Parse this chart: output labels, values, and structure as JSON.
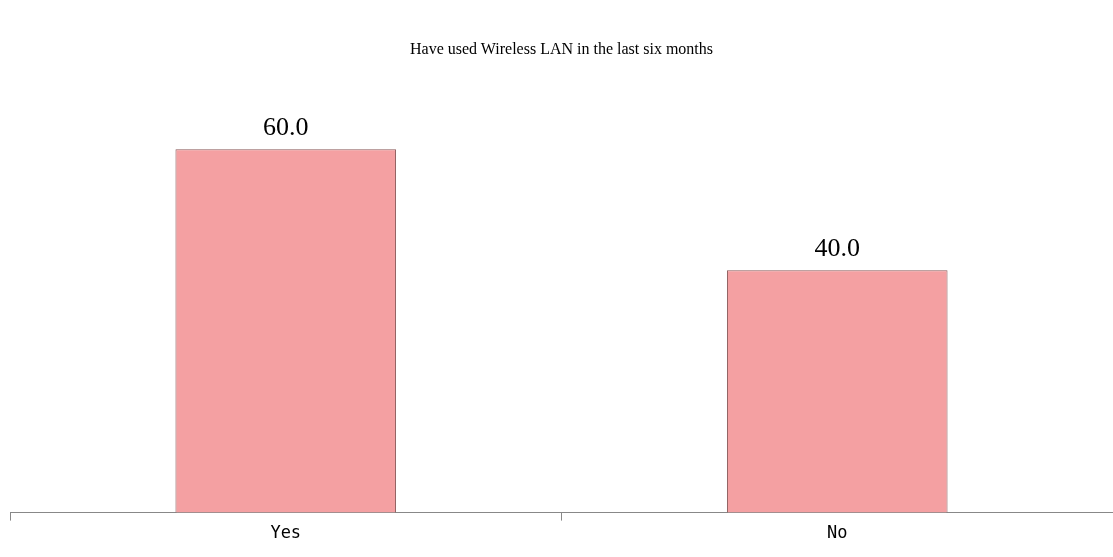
{
  "chart_data": {
    "type": "bar",
    "title": "Have used Wireless LAN in the last six months",
    "categories": [
      "Yes",
      "No"
    ],
    "values": [
      60.0,
      40.0
    ],
    "color": "#f4a0a2",
    "value_labels": [
      "60.0",
      "40.0"
    ],
    "grid": false,
    "legend": false
  }
}
